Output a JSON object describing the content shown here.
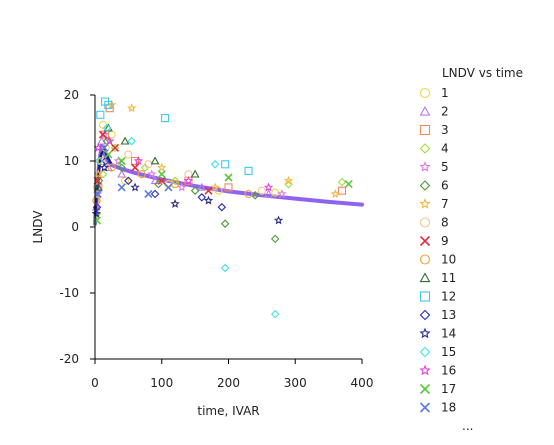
{
  "chart_data": {
    "type": "scatter",
    "xlabel": "time, IVAR",
    "ylabel": "LNDV",
    "xlim": [
      0,
      400
    ],
    "ylim": [
      -20,
      20
    ],
    "x_ticks": [
      "0",
      "100",
      "200",
      "300",
      "400"
    ],
    "y_ticks": [
      "20",
      "10",
      "0",
      "-10",
      "-20"
    ],
    "grid": false,
    "legend": {
      "title": "LNDV vs time",
      "placement": "right",
      "more": "...",
      "entries": [
        {
          "label": "1",
          "marker": "circle",
          "color": "#F5D547"
        },
        {
          "label": "2",
          "marker": "triangle",
          "color": "#B77CE8"
        },
        {
          "label": "3",
          "marker": "square",
          "color": "#F08A5D"
        },
        {
          "label": "4",
          "marker": "diamond",
          "color": "#9BE03B"
        },
        {
          "label": "5",
          "marker": "star",
          "color": "#E07BE0"
        },
        {
          "label": "6",
          "marker": "diamond",
          "color": "#4E9A3A"
        },
        {
          "label": "7",
          "marker": "star",
          "color": "#F5B840"
        },
        {
          "label": "8",
          "marker": "circle",
          "color": "#F7C58E"
        },
        {
          "label": "9",
          "marker": "cross",
          "color": "#E0303A"
        },
        {
          "label": "10",
          "marker": "circle",
          "color": "#F3A33A"
        },
        {
          "label": "11",
          "marker": "triangle",
          "color": "#2F6E2F"
        },
        {
          "label": "12",
          "marker": "square",
          "color": "#3EC8F0"
        },
        {
          "label": "13",
          "marker": "diamond",
          "color": "#2B2BB8"
        },
        {
          "label": "14",
          "marker": "star",
          "color": "#2A2A8E"
        },
        {
          "label": "15",
          "marker": "diamond",
          "color": "#43E0E6"
        },
        {
          "label": "16",
          "marker": "star",
          "color": "#E040D8"
        },
        {
          "label": "17",
          "marker": "cross",
          "color": "#5BC83A"
        },
        {
          "label": "18",
          "marker": "cross",
          "color": "#5A7DE0"
        }
      ]
    },
    "fit_line": {
      "color": "#8E63F0",
      "x": [
        0,
        3,
        6,
        10,
        14,
        18,
        25,
        40,
        60,
        100,
        150,
        200,
        250,
        300,
        350,
        400
      ],
      "y": [
        0.5,
        5,
        9.5,
        12.3,
        11.2,
        10.2,
        9.4,
        8.8,
        8.2,
        7.2,
        6.2,
        5.4,
        4.8,
        4.3,
        3.8,
        3.4
      ]
    },
    "fit_line_dark": {
      "color": "#1E1E7A",
      "x": [
        0,
        4,
        8,
        13,
        18,
        24
      ],
      "y": [
        1.5,
        7,
        10.5,
        12.2,
        10.8,
        9.6
      ]
    },
    "series": [
      {
        "name": "1",
        "points": [
          [
            3,
            4
          ],
          [
            12,
            15.5
          ],
          [
            25,
            14
          ],
          [
            45,
            7
          ],
          [
            110,
            6.5
          ],
          [
            185,
            5.5
          ],
          [
            270,
            5.2
          ]
        ]
      },
      {
        "name": "2",
        "points": [
          [
            2,
            3
          ],
          [
            10,
            13
          ],
          [
            20,
            9
          ],
          [
            40,
            8
          ],
          [
            90,
            7
          ],
          [
            160,
            6
          ],
          [
            260,
            5
          ]
        ]
      },
      {
        "name": "3",
        "points": [
          [
            5,
            6
          ],
          [
            15,
            14
          ],
          [
            22,
            18
          ],
          [
            60,
            10
          ],
          [
            140,
            7
          ],
          [
            200,
            6
          ],
          [
            370,
            5.5
          ]
        ]
      },
      {
        "name": "4",
        "points": [
          [
            3,
            2
          ],
          [
            12,
            8
          ],
          [
            30,
            12
          ],
          [
            75,
            9
          ],
          [
            120,
            7
          ],
          [
            290,
            6.5
          ],
          [
            370,
            6.8
          ]
        ]
      },
      {
        "name": "5",
        "points": [
          [
            4,
            5
          ],
          [
            14,
            14
          ],
          [
            35,
            10
          ],
          [
            85,
            8
          ],
          [
            130,
            6
          ],
          [
            280,
            5
          ]
        ]
      },
      {
        "name": "6",
        "points": [
          [
            6,
            7
          ],
          [
            18,
            13
          ],
          [
            40,
            9
          ],
          [
            95,
            6.5
          ],
          [
            150,
            5.5
          ],
          [
            240,
            4.8
          ]
        ]
      },
      {
        "name": "7",
        "points": [
          [
            5,
            8
          ],
          [
            25,
            18.5
          ],
          [
            55,
            18
          ],
          [
            100,
            9
          ],
          [
            180,
            6
          ],
          [
            290,
            7
          ],
          [
            360,
            5
          ]
        ]
      },
      {
        "name": "8",
        "points": [
          [
            3,
            6
          ],
          [
            16,
            12
          ],
          [
            50,
            11
          ],
          [
            80,
            9.5
          ],
          [
            140,
            8
          ],
          [
            250,
            5.5
          ]
        ]
      },
      {
        "name": "9",
        "points": [
          [
            4,
            7
          ],
          [
            12,
            14
          ],
          [
            30,
            12
          ],
          [
            60,
            9
          ],
          [
            100,
            7
          ],
          [
            170,
            5.5
          ]
        ]
      },
      {
        "name": "10",
        "points": [
          [
            2,
            4
          ],
          [
            10,
            10
          ],
          [
            25,
            9
          ],
          [
            70,
            8
          ],
          [
            120,
            6.5
          ],
          [
            230,
            5
          ]
        ]
      },
      {
        "name": "11",
        "points": [
          [
            5,
            6
          ],
          [
            20,
            15
          ],
          [
            45,
            13
          ],
          [
            90,
            10
          ],
          [
            150,
            8
          ]
        ]
      },
      {
        "name": "12",
        "points": [
          [
            8,
            17
          ],
          [
            15,
            19
          ],
          [
            20,
            18.5
          ],
          [
            105,
            16.5
          ],
          [
            195,
            9.5
          ],
          [
            230,
            8.5
          ]
        ]
      },
      {
        "name": "13",
        "points": [
          [
            3,
            3
          ],
          [
            16,
            10
          ],
          [
            50,
            7
          ],
          [
            90,
            5
          ],
          [
            160,
            4.5
          ],
          [
            190,
            3
          ]
        ]
      },
      {
        "name": "14",
        "points": [
          [
            2,
            2
          ],
          [
            14,
            9
          ],
          [
            60,
            6
          ],
          [
            120,
            3.5
          ],
          [
            170,
            4
          ],
          [
            275,
            1
          ]
        ]
      },
      {
        "name": "15",
        "points": [
          [
            6,
            10
          ],
          [
            18,
            15
          ],
          [
            55,
            13
          ],
          [
            180,
            9.5
          ],
          [
            195,
            -6.2
          ],
          [
            270,
            -13.2
          ]
        ]
      },
      {
        "name": "16",
        "points": [
          [
            5,
            12
          ],
          [
            22,
            13
          ],
          [
            65,
            10
          ],
          [
            140,
            7
          ],
          [
            260,
            6
          ]
        ]
      },
      {
        "name": "17",
        "points": [
          [
            3,
            1
          ],
          [
            20,
            11
          ],
          [
            40,
            10
          ],
          [
            100,
            8
          ],
          [
            200,
            7.5
          ],
          [
            380,
            6.5
          ]
        ]
      },
      {
        "name": "18",
        "points": [
          [
            4,
            5
          ],
          [
            14,
            12
          ],
          [
            40,
            6
          ],
          [
            80,
            5
          ],
          [
            110,
            6
          ]
        ]
      },
      {
        "name": "6",
        "points": [
          [
            195,
            0.5
          ],
          [
            270,
            -1.8
          ]
        ]
      }
    ]
  }
}
